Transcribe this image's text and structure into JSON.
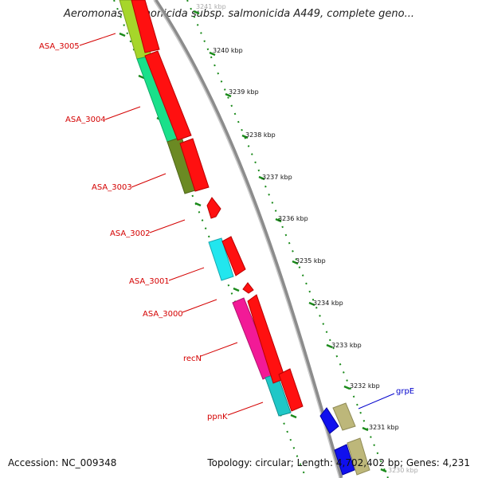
{
  "header": {
    "title": "Aeromonas salmonicida subsp. salmonicida A449, complete geno..."
  },
  "footer": {
    "accession": "Accession: NC_009348",
    "summary": "Topology: circular; Length: 4,702,402 bp; Genes: 4,231"
  },
  "ruler": {
    "ticks": [
      "3241 kbp",
      "3240 kbp",
      "3239 kbp",
      "3238 kbp",
      "3237 kbp",
      "3236 kbp",
      "3235 kbp",
      "3234 kbp",
      "3233 kbp",
      "3232 kbp",
      "3231 kbp",
      "3230 kbp"
    ]
  },
  "genes": [
    {
      "label": "ASA_3005",
      "label_color": "#d40000",
      "color": "#a6d62a"
    },
    {
      "label": "ASA_3004",
      "label_color": "#d40000",
      "color": "#19e08a"
    },
    {
      "label": "ASA_3003",
      "label_color": "#d40000",
      "color": "#6b8a23"
    },
    {
      "label": "ASA_3002",
      "label_color": "#d40000",
      "color": null
    },
    {
      "label": "ASA_3001",
      "label_color": "#d40000",
      "color": "#22e6ee"
    },
    {
      "label": "ASA_3000",
      "label_color": "#d40000",
      "color": null
    },
    {
      "label": "recN",
      "label_color": "#d40000",
      "color": "#f21a97"
    },
    {
      "label": "ppnK",
      "label_color": "#d40000",
      "color": "#1fc7c7"
    },
    {
      "label": "grpE",
      "label_color": "#0000cc",
      "color": "#bdb77a"
    }
  ],
  "colors": {
    "cds": "#ff1010",
    "backbone": "#8c8c8c",
    "ruler": "#1a8a1a",
    "reverse_cds": "#1010ee"
  }
}
